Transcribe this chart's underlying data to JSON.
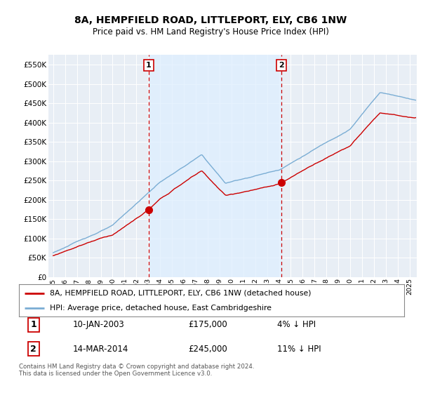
{
  "title": "8A, HEMPFIELD ROAD, LITTLEPORT, ELY, CB6 1NW",
  "subtitle": "Price paid vs. HM Land Registry's House Price Index (HPI)",
  "legend_line1": "8A, HEMPFIELD ROAD, LITTLEPORT, ELY, CB6 1NW (detached house)",
  "legend_line2": "HPI: Average price, detached house, East Cambridgeshire",
  "sale1_date": "10-JAN-2003",
  "sale1_price": "£175,000",
  "sale1_hpi": "4% ↓ HPI",
  "sale2_date": "14-MAR-2014",
  "sale2_price": "£245,000",
  "sale2_hpi": "11% ↓ HPI",
  "footnote": "Contains HM Land Registry data © Crown copyright and database right 2024.\nThis data is licensed under the Open Government Licence v3.0.",
  "hpi_color": "#7aadd4",
  "price_color": "#cc0000",
  "vline_color": "#cc0000",
  "shade_color": "#ddeeff",
  "ylim": [
    0,
    575000
  ],
  "yticks": [
    0,
    50000,
    100000,
    150000,
    200000,
    250000,
    300000,
    350000,
    400000,
    450000,
    500000,
    550000
  ],
  "sale1_x": 2003.04,
  "sale1_y": 175000,
  "sale2_x": 2014.21,
  "sale2_y": 245000,
  "xmin": 1995.0,
  "xmax": 2025.5
}
